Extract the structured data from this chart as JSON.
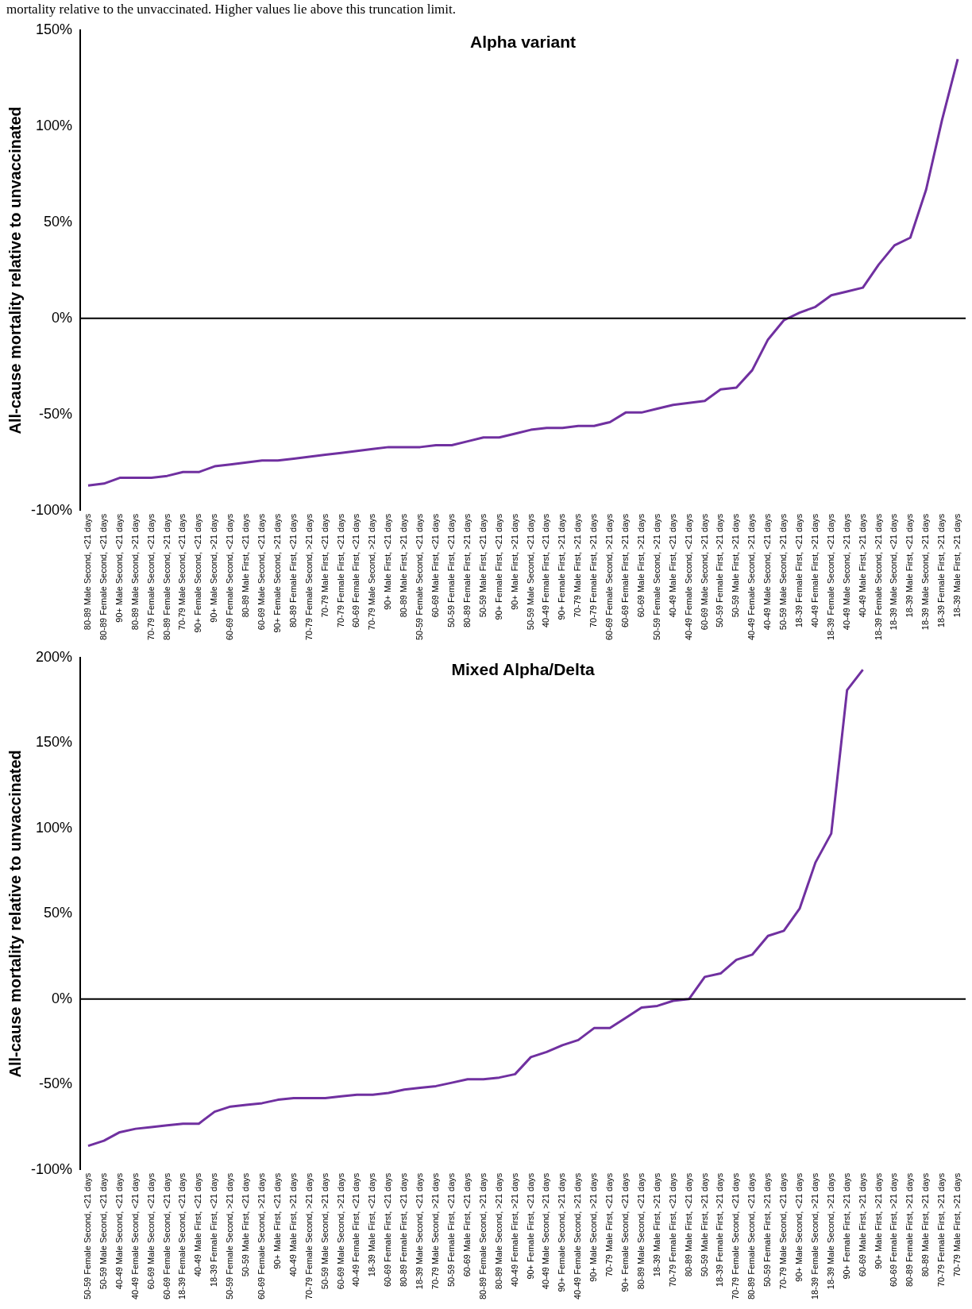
{
  "chart_data": [
    {
      "type": "line",
      "title": "Alpha variant",
      "ylabel": "All-cause mortality relative to unvaccinated",
      "color": "#7030a0",
      "ylim": [
        -100,
        150
      ],
      "yticks": [
        {
          "value": -100,
          "label": "-100%"
        },
        {
          "value": -50,
          "label": "-50%"
        },
        {
          "value": 0,
          "label": "0%"
        },
        {
          "value": 50,
          "label": "50%"
        },
        {
          "value": 100,
          "label": "100%"
        },
        {
          "value": 150,
          "label": "150%"
        }
      ],
      "annotations": [
        "mortality relative to the unvaccinated. Higher values lie above this truncation limit."
      ],
      "categories": [
        "80-89 Male Second, <21 days",
        "80-89 Female Second, <21 days",
        "90+ Male Second, <21 days",
        "80-89 Male Second, >21 days",
        "70-79 Female Second, <21 days",
        "80-89 Female Second, >21 days",
        "70-79 Male Second, <21 days",
        "90+ Female Second, <21 days",
        "90+ Male Second, >21 days",
        "60-69 Female Second, <21 days",
        "80-89 Male First, <21 days",
        "60-69 Male Second, <21 days",
        "90+ Female Second, >21 days",
        "80-89 Female First, <21 days",
        "70-79 Female Second, >21 days",
        "70-79 Male First, <21 days",
        "70-79 Female First, <21 days",
        "60-69 Female First, <21 days",
        "70-79 Male Second, >21 days",
        "90+ Male First, <21 days",
        "80-89 Male First, >21 days",
        "50-59 Female Second, <21 days",
        "60-69 Male First, <21 days",
        "50-59 Female First, <21 days",
        "80-89 Female First, >21 days",
        "50-59 Male First, <21 days",
        "90+ Female First, <21 days",
        "90+ Male First, >21 days",
        "50-59 Male Second, <21 days",
        "40-49 Female First, <21 days",
        "90+ Female First, >21 days",
        "70-79 Male First, >21 days",
        "70-79 Female First, >21 days",
        "60-69 Female Second, >21 days",
        "60-69 Female First, >21 days",
        "60-69 Male First, >21 days",
        "50-59 Female Second, >21 days",
        "40-49 Male First, <21 days",
        "40-49 Female Second, <21 days",
        "60-69 Male Second, >21 days",
        "50-59 Female First, >21 days",
        "50-59 Male First, >21 days",
        "40-49 Female Second, >21 days",
        "40-49 Male Second, <21 days",
        "50-59 Male Second, >21 days",
        "18-39 Female First, <21 days",
        "40-49 Female First, >21 days",
        "18-39 Female Second, <21 days",
        "40-49 Male Second, >21 days",
        "40-49 Male First, >21 days",
        "18-39 Female Second, >21 days",
        "18-39 Male Second, <21 days",
        "18-39 Male First, <21 days",
        "18-39 Male Second, >21 days",
        "18-39 Female First, >21 days",
        "18-39 Male First, >21 days"
      ],
      "values": [
        -87,
        -86,
        -83,
        -83,
        -83,
        -82,
        -80,
        -80,
        -77,
        -76,
        -75,
        -74,
        -74,
        -73,
        -72,
        -71,
        -70,
        -69,
        -68,
        -67,
        -67,
        -67,
        -66,
        -66,
        -64,
        -62,
        -62,
        -60,
        -58,
        -57,
        -57,
        -56,
        -56,
        -54,
        -49,
        -49,
        -47,
        -45,
        -44,
        -43,
        -37,
        -36,
        -27,
        -11,
        -1,
        3,
        6,
        12,
        14,
        16,
        28,
        38,
        42,
        67,
        103,
        135
      ]
    },
    {
      "type": "line",
      "title": "Mixed Alpha/Delta",
      "ylabel": "All-cause mortality relative to unvaccinated",
      "color": "#7030a0",
      "ylim": [
        -100,
        200
      ],
      "yticks": [
        {
          "value": -100,
          "label": "-100%"
        },
        {
          "value": -50,
          "label": "-50%"
        },
        {
          "value": 0,
          "label": "0%"
        },
        {
          "value": 50,
          "label": "50%"
        },
        {
          "value": 100,
          "label": "100%"
        },
        {
          "value": 150,
          "label": "150%"
        },
        {
          "value": 200,
          "label": "200%"
        }
      ],
      "categories": [
        "50-59 Female Second, <21 days",
        "50-59 Male Second, <21 days",
        "40-49 Male Second, <21 days",
        "40-49 Female Second, <21 days",
        "60-69 Male Second, <21 days",
        "60-69 Female Second, <21 days",
        "18-39 Female Second, <21 days",
        "40-49 Male First, <21 days",
        "18-39 Female First, <21 days",
        "50-59 Female Second, >21 days",
        "50-59 Male First, <21 days",
        "60-69 Female Second, >21 days",
        "90+ Male First, <21 days",
        "40-49 Male First, >21 days",
        "70-79 Female Second, >21 days",
        "50-59 Male Second, >21 days",
        "60-69 Male Second, >21 days",
        "40-49 Female First, <21 days",
        "18-39 Male First, <21 days",
        "60-69 Female First, <21 days",
        "80-89 Female First, <21 days",
        "18-39 Male Second, <21 days",
        "70-79 Male Second, >21 days",
        "50-59 Female First, <21 days",
        "60-69 Male First, <21 days",
        "80-89 Female Second, >21 days",
        "80-89 Male Second, >21 days",
        "40-49 Female First, >21 days",
        "90+ Female First, <21 days",
        "40-49 Male Second, >21 days",
        "90+ Female Second, >21 days",
        "40-49 Female Second, >21 days",
        "90+ Male Second, >21 days",
        "70-79 Male First, <21 days",
        "90+ Female Second, <21 days",
        "80-89 Male Second, <21 days",
        "18-39 Male First, >21 days",
        "70-79 Female First, <21 days",
        "80-89 Male First, <21 days",
        "50-59 Male First, >21 days",
        "18-39 Female First, >21 days",
        "70-79 Female Second, <21 days",
        "80-89 Female Second, <21 days",
        "50-59 Female First, >21 days",
        "70-79 Male Second, <21 days",
        "90+ Male Second, <21 days",
        "18-39 Female Second, >21 days",
        "18-39 Male Second, >21 days",
        "90+ Female First, >21 days",
        "60-69 Male First, >21 days",
        "90+ Male First, >21 days",
        "60-69 Female First, >21 days",
        "80-89 Female First, >21 days",
        "80-89 Male First, >21 days",
        "70-79 Female First, >21 days",
        "70-79 Male First, >21 days"
      ],
      "values": [
        -86,
        -83,
        -78,
        -76,
        -75,
        -74,
        -73,
        -73,
        -66,
        -63,
        -62,
        -61,
        -59,
        -58,
        -58,
        -58,
        -57,
        -56,
        -56,
        -55,
        -53,
        -52,
        -51,
        -49,
        -47,
        -47,
        -46,
        -44,
        -34,
        -31,
        -27,
        -24,
        -17,
        -17,
        -11,
        -5,
        -4,
        -1,
        0,
        13,
        15,
        23,
        26,
        37,
        40,
        53,
        80,
        97,
        181,
        193,
        null,
        null,
        null,
        null,
        null,
        null
      ]
    }
  ]
}
